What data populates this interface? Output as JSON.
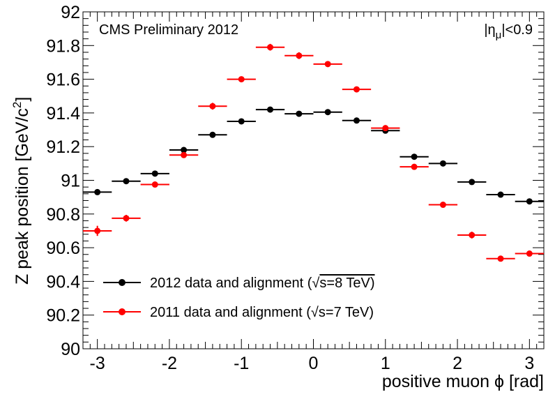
{
  "chart_data": {
    "type": "scatter",
    "title": "CMS Preliminary 2012",
    "annotation": "|η_μ|<0.9",
    "annotation_parts": {
      "prefix": "|η",
      "subscript": "μ",
      "suffix": "|<0.9"
    },
    "xlabel": "positive muon ϕ [rad]",
    "ylabel": "Z peak position [GeV/c²]",
    "ylabel_parts": {
      "main": "Z peak position [GeV/c",
      "sup": "2",
      "end": "]"
    },
    "xlim": [
      -3.2,
      3.2
    ],
    "ylim": [
      90,
      92
    ],
    "x_ticks": [
      -3,
      -2,
      -1,
      0,
      1,
      2,
      3
    ],
    "y_ticks": [
      90,
      90.2,
      90.4,
      90.6,
      90.8,
      91,
      91.2,
      91.4,
      91.6,
      91.8,
      92
    ],
    "x_tick_labels": [
      "-3",
      "-2",
      "-1",
      "0",
      "1",
      "2",
      "3"
    ],
    "y_tick_labels": [
      "90",
      "90.2",
      "90.4",
      "90.6",
      "90.8",
      "91",
      "91.2",
      "91.4",
      "91.6",
      "91.8",
      "92"
    ],
    "legend": {
      "placement": "bottom-left",
      "entries": [
        {
          "label": "2012 data and alignment (",
          "sqrt_s": "s=8 TeV)",
          "color": "#000000"
        },
        {
          "label": "2011 data and alignment (",
          "sqrt_s": "s=7 TeV)",
          "color": "#ff0000"
        }
      ]
    },
    "x": [
      -3.0,
      -2.6,
      -2.2,
      -1.8,
      -1.4,
      -1.0,
      -0.6,
      -0.2,
      0.2,
      0.6,
      1.0,
      1.4,
      1.8,
      2.2,
      2.6,
      3.0
    ],
    "x_half_width": 0.2,
    "series": [
      {
        "name": "2012 data and alignment (√s=8 TeV)",
        "color": "#000000",
        "values": [
          90.93,
          90.995,
          91.04,
          91.18,
          91.27,
          91.35,
          91.42,
          91.395,
          91.405,
          91.355,
          91.295,
          91.14,
          91.1,
          90.99,
          90.915,
          90.875
        ],
        "errors": [
          0.01,
          0.01,
          0.01,
          0.01,
          0.01,
          0.01,
          0.01,
          0.01,
          0.01,
          0.01,
          0.01,
          0.01,
          0.01,
          0.01,
          0.01,
          0.01
        ]
      },
      {
        "name": "2011 data and alignment (√s=7 TeV)",
        "color": "#ff0000",
        "values": [
          90.7,
          90.775,
          90.975,
          91.15,
          91.44,
          91.6,
          91.79,
          91.74,
          91.69,
          91.54,
          91.31,
          91.08,
          90.855,
          90.675,
          90.535,
          90.565
        ],
        "errors": [
          0.03,
          0.02,
          0.015,
          0.015,
          0.02,
          0.015,
          0.02,
          0.02,
          0.015,
          0.015,
          0.015,
          0.015,
          0.015,
          0.02,
          0.015,
          0.015
        ]
      }
    ]
  }
}
